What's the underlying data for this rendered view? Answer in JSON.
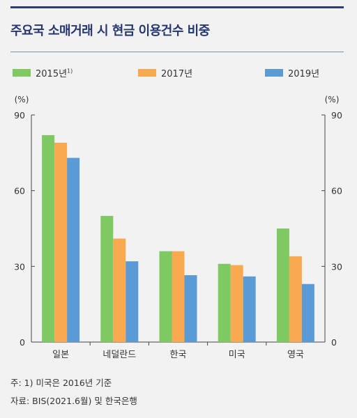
{
  "title": "주요국 소매거래 시 현금 이용건수 비중",
  "legend": [
    {
      "label": "2015년",
      "sup": "1)",
      "color": "#7ec962"
    },
    {
      "label": "2017년",
      "sup": "",
      "color": "#f9a94f"
    },
    {
      "label": "2019년",
      "sup": "",
      "color": "#5b9bd5"
    }
  ],
  "notes": {
    "footnote": "주: 1) 미국은 2016년 기준",
    "source": "자료: BIS(2021.6월) 및 한국은행"
  },
  "chart_data": {
    "type": "bar",
    "categories": [
      "일본",
      "네덜란드",
      "한국",
      "미국",
      "영국"
    ],
    "series": [
      {
        "name": "2015년",
        "values": [
          82,
          50,
          36,
          31,
          45
        ]
      },
      {
        "name": "2017년",
        "values": [
          79,
          41,
          36,
          30.5,
          34
        ]
      },
      {
        "name": "2019년",
        "values": [
          73,
          32,
          26.5,
          26,
          23
        ]
      }
    ],
    "ylim": [
      0,
      90
    ],
    "yticks": [
      0,
      30,
      60,
      90
    ],
    "yunit_left": "(%)",
    "yunit_right": "(%)",
    "grid": false
  }
}
